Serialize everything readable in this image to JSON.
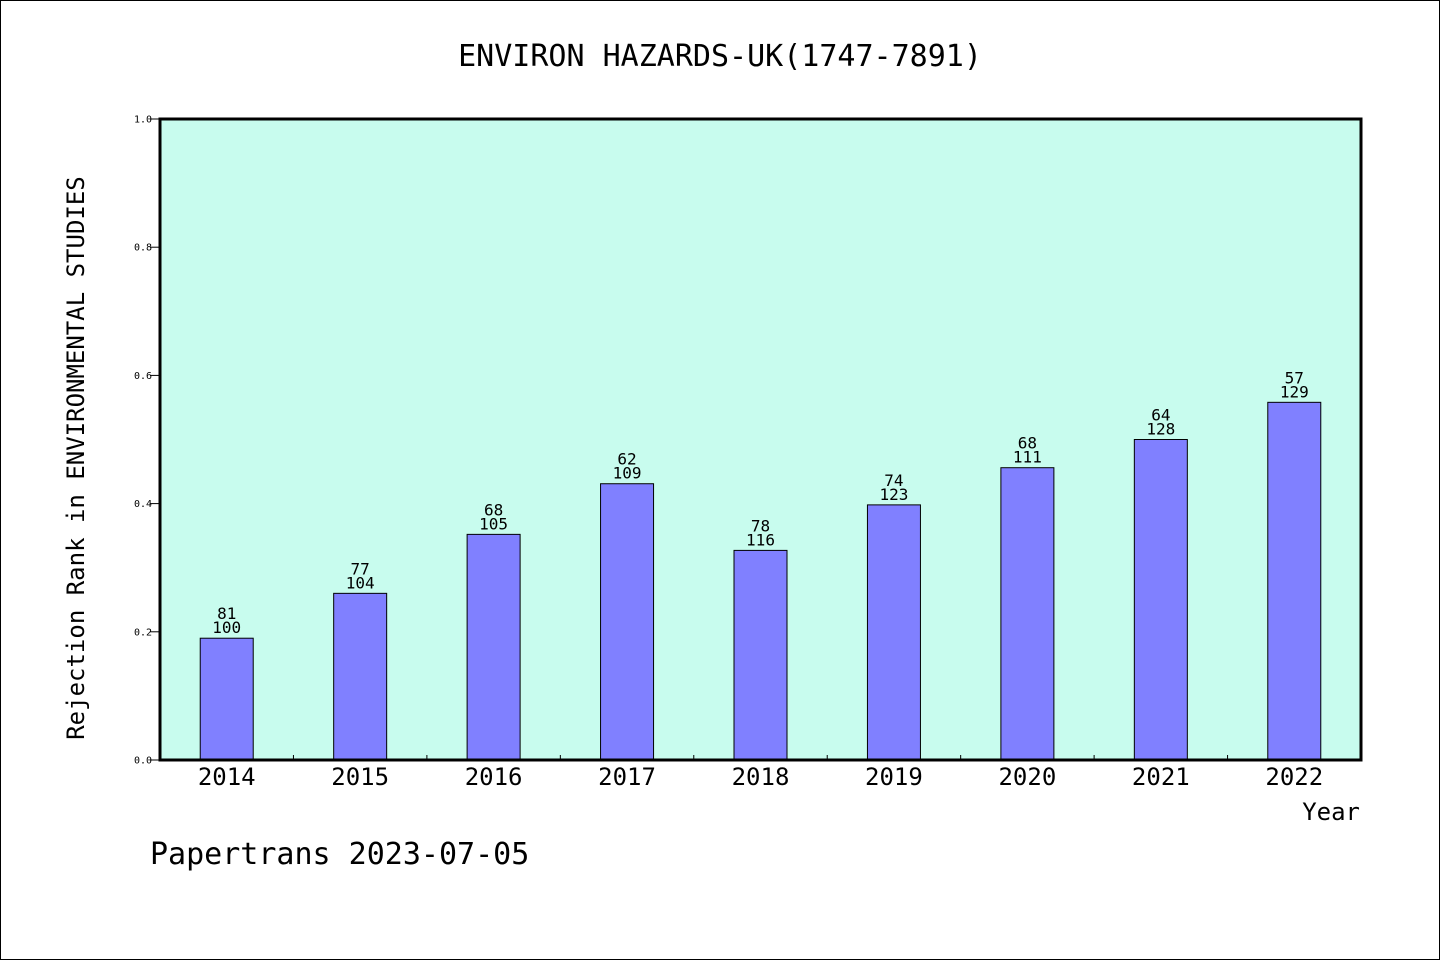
{
  "chart_data": {
    "type": "bar",
    "title": "ENVIRON HAZARDS-UK(1747-7891)",
    "xlabel": "Year",
    "ylabel": "Rejection Rank in ENVIRONMENTAL STUDIES",
    "categories": [
      "2014",
      "2015",
      "2016",
      "2017",
      "2018",
      "2019",
      "2020",
      "2021",
      "2022"
    ],
    "values": [
      0.19,
      0.26,
      0.352,
      0.431,
      0.327,
      0.398,
      0.456,
      0.5,
      0.558
    ],
    "bar_labels_top": [
      "81",
      "77",
      "68",
      "62",
      "78",
      "74",
      "68",
      "64",
      "57"
    ],
    "bar_labels_bottom": [
      "100",
      "104",
      "105",
      "109",
      "116",
      "123",
      "111",
      "128",
      "129"
    ],
    "ylim": [
      0.0,
      1.0
    ],
    "yticks": [
      0.0,
      0.2,
      0.4,
      0.6,
      0.8,
      1.0
    ],
    "ytick_labels": [
      "0.0",
      "0.2",
      "0.4",
      "0.6",
      "0.8",
      "1.0"
    ],
    "grid": false,
    "legend": "none"
  },
  "colors": {
    "plot_background": "#c8fcee",
    "bar_fill": "#8080ff",
    "bar_edge": "#000000"
  },
  "footer": "Papertrans 2023-07-05"
}
